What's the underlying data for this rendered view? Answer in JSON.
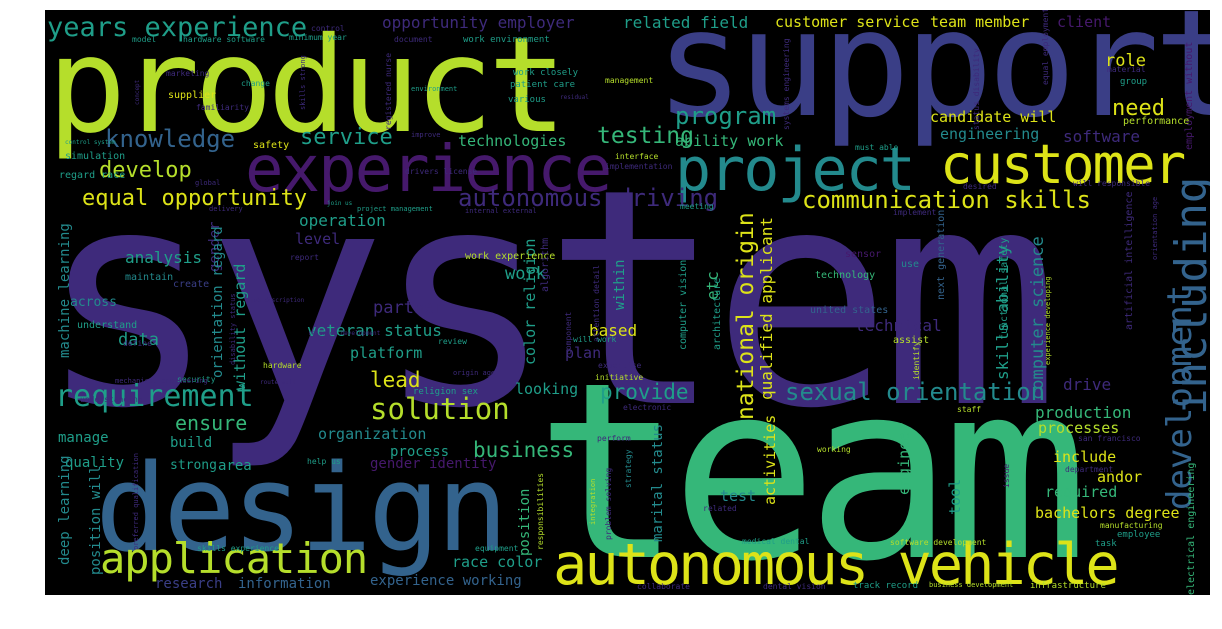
{
  "colors": {
    "purple": "#46196c",
    "violet": "#3e2a7b",
    "indigo": "#3a3e86",
    "blue": "#33638d",
    "teal": "#238a8d",
    "aqua": "#1f9e89",
    "green": "#35b779",
    "lime": "#b5de2b",
    "yellow": "#dde318",
    "background": "#000000"
  },
  "words": [
    {
      "text": "system",
      "color": "violet"
    },
    {
      "text": "team",
      "color": "green"
    },
    {
      "text": "support",
      "color": "indigo"
    },
    {
      "text": "product",
      "color": "lime"
    },
    {
      "text": "design",
      "color": "blue"
    },
    {
      "text": "experience",
      "color": "purple"
    },
    {
      "text": "customer",
      "color": "yellow"
    },
    {
      "text": "project",
      "color": "teal"
    },
    {
      "text": "autonomous vehicle",
      "color": "yellow"
    },
    {
      "text": "application",
      "color": "lime"
    },
    {
      "text": "including",
      "color": "blue"
    },
    {
      "text": "development",
      "color": "blue"
    },
    {
      "text": "years experience",
      "color": "aqua"
    },
    {
      "text": "requirement",
      "color": "aqua"
    },
    {
      "text": "solution",
      "color": "lime"
    },
    {
      "text": "sexual orientation",
      "color": "teal"
    },
    {
      "text": "communication skills",
      "color": "yellow"
    },
    {
      "text": "national origin",
      "color": "yellow"
    },
    {
      "text": "autonomous driving",
      "color": "violet"
    },
    {
      "text": "equal opportunity",
      "color": "yellow"
    },
    {
      "text": "knowledge",
      "color": "blue"
    },
    {
      "text": "develop",
      "color": "lime"
    },
    {
      "text": "program",
      "color": "aqua"
    },
    {
      "text": "testing",
      "color": "green"
    },
    {
      "text": "need",
      "color": "yellow"
    },
    {
      "text": "service",
      "color": "aqua"
    },
    {
      "text": "lead",
      "color": "yellow"
    },
    {
      "text": "business",
      "color": "green"
    },
    {
      "text": "ensure",
      "color": "green"
    },
    {
      "text": "provide",
      "color": "aqua"
    },
    {
      "text": "opportunity employer",
      "color": "violet"
    },
    {
      "text": "related field",
      "color": "aqua"
    },
    {
      "text": "customer service",
      "color": "yellow"
    },
    {
      "text": "team member",
      "color": "yellow"
    },
    {
      "text": "client",
      "color": "purple"
    },
    {
      "text": "role",
      "color": "yellow"
    },
    {
      "text": "candidate will",
      "color": "yellow"
    },
    {
      "text": "software",
      "color": "violet"
    },
    {
      "text": "engineering",
      "color": "teal"
    },
    {
      "text": "technologies",
      "color": "green"
    },
    {
      "text": "ability work",
      "color": "green"
    },
    {
      "text": "operation",
      "color": "aqua"
    },
    {
      "text": "analysis",
      "color": "aqua"
    },
    {
      "text": "work",
      "color": "aqua"
    },
    {
      "text": "data",
      "color": "aqua"
    },
    {
      "text": "veteran status",
      "color": "aqua"
    },
    {
      "text": "platform",
      "color": "aqua"
    },
    {
      "text": "partner",
      "color": "violet"
    },
    {
      "text": "based",
      "color": "yellow"
    },
    {
      "text": "plan",
      "color": "violet"
    },
    {
      "text": "technical",
      "color": "violet"
    },
    {
      "text": "color religion",
      "color": "aqua"
    },
    {
      "text": "within",
      "color": "aqua"
    },
    {
      "text": "etc",
      "color": "green"
    },
    {
      "text": "qualified applicant",
      "color": "yellow"
    },
    {
      "text": "skills ability",
      "color": "aqua"
    },
    {
      "text": "computer science",
      "color": "teal"
    },
    {
      "text": "drive",
      "color": "violet"
    },
    {
      "text": "production",
      "color": "green"
    },
    {
      "text": "processes",
      "color": "lime"
    },
    {
      "text": "include",
      "color": "yellow"
    },
    {
      "text": "andor",
      "color": "yellow"
    },
    {
      "text": "required",
      "color": "green"
    },
    {
      "text": "bachelors degree",
      "color": "yellow"
    },
    {
      "text": "tool",
      "color": "aqua"
    },
    {
      "text": "engineer",
      "color": "green"
    },
    {
      "text": "test",
      "color": "teal"
    },
    {
      "text": "activities",
      "color": "yellow"
    },
    {
      "text": "marital status",
      "color": "teal"
    },
    {
      "text": "position",
      "color": "green"
    },
    {
      "text": "race color",
      "color": "aqua"
    },
    {
      "text": "experience working",
      "color": "blue"
    },
    {
      "text": "research",
      "color": "indigo"
    },
    {
      "text": "information",
      "color": "blue"
    },
    {
      "text": "manage",
      "color": "aqua"
    },
    {
      "text": "build",
      "color": "aqua"
    },
    {
      "text": "quality",
      "color": "aqua"
    },
    {
      "text": "area",
      "color": "aqua"
    },
    {
      "text": "strong",
      "color": "aqua"
    },
    {
      "text": "organization",
      "color": "teal"
    },
    {
      "text": "process",
      "color": "aqua"
    },
    {
      "text": "gender identity",
      "color": "purple"
    },
    {
      "text": "looking",
      "color": "aqua"
    },
    {
      "text": "deep learning",
      "color": "teal"
    },
    {
      "text": "position will",
      "color": "teal"
    },
    {
      "text": "machine learning",
      "color": "teal"
    },
    {
      "text": "gender",
      "color": "violet"
    },
    {
      "text": "orientation regard",
      "color": "teal"
    },
    {
      "text": "without regard",
      "color": "aqua"
    },
    {
      "text": "level",
      "color": "violet"
    },
    {
      "text": "across",
      "color": "teal"
    },
    {
      "text": "understand",
      "color": "aqua"
    },
    {
      "text": "maintain",
      "color": "teal"
    },
    {
      "text": "create",
      "color": "indigo"
    },
    {
      "text": "work experience",
      "color": "lime"
    },
    {
      "text": "algorithm",
      "color": "violet"
    },
    {
      "text": "computer vision",
      "color": "aqua"
    },
    {
      "text": "architecture",
      "color": "aqua"
    },
    {
      "text": "technology",
      "color": "green"
    },
    {
      "text": "united states",
      "color": "blue"
    },
    {
      "text": "assist",
      "color": "lime"
    },
    {
      "text": "sensor",
      "color": "purple"
    },
    {
      "text": "use",
      "color": "teal"
    },
    {
      "text": "next generation",
      "color": "blue"
    },
    {
      "text": "functional safety",
      "color": "aqua"
    },
    {
      "text": "artificial intelligence",
      "color": "violet"
    },
    {
      "text": "electrical engineering",
      "color": "green"
    },
    {
      "text": "employment without",
      "color": "purple"
    },
    {
      "text": "performance",
      "color": "lime"
    },
    {
      "text": "simulation",
      "color": "aqua"
    },
    {
      "text": "safety",
      "color": "yellow"
    },
    {
      "text": "regard race",
      "color": "aqua"
    },
    {
      "text": "supplier",
      "color": "yellow"
    },
    {
      "text": "marketing",
      "color": "violet"
    },
    {
      "text": "familiarity",
      "color": "violet"
    },
    {
      "text": "control",
      "color": "violet"
    },
    {
      "text": "model",
      "color": "aqua"
    },
    {
      "text": "hardware software",
      "color": "aqua"
    },
    {
      "text": "minimum year",
      "color": "aqua"
    },
    {
      "text": "document",
      "color": "violet"
    },
    {
      "text": "work environment",
      "color": "aqua"
    },
    {
      "text": "work closely",
      "color": "aqua"
    },
    {
      "text": "patient care",
      "color": "aqua"
    },
    {
      "text": "various",
      "color": "aqua"
    },
    {
      "text": "management",
      "color": "lime"
    },
    {
      "text": "interface",
      "color": "lime"
    },
    {
      "text": "implementation",
      "color": "violet"
    },
    {
      "text": "must able",
      "color": "aqua"
    },
    {
      "text": "will responsible",
      "color": "violet"
    },
    {
      "text": "desired",
      "color": "violet"
    },
    {
      "text": "implement",
      "color": "violet"
    },
    {
      "text": "meeting",
      "color": "aqua"
    },
    {
      "text": "project management",
      "color": "aqua"
    },
    {
      "text": "report",
      "color": "violet"
    },
    {
      "text": "review",
      "color": "aqua"
    },
    {
      "text": "hardware",
      "color": "lime"
    },
    {
      "text": "security",
      "color": "aqua"
    },
    {
      "text": "define",
      "color": "violet"
    },
    {
      "text": "help us",
      "color": "aqua"
    },
    {
      "text": "religion sex",
      "color": "aqua"
    },
    {
      "text": "expertise",
      "color": "violet"
    },
    {
      "text": "initiative",
      "color": "lime"
    },
    {
      "text": "electronic",
      "color": "violet"
    },
    {
      "text": "perform",
      "color": "violet"
    },
    {
      "text": "strategy",
      "color": "teal"
    },
    {
      "text": "working",
      "color": "lime"
    },
    {
      "text": "staff",
      "color": "lime"
    },
    {
      "text": "san francisco",
      "color": "violet"
    },
    {
      "text": "department",
      "color": "violet"
    },
    {
      "text": "issue",
      "color": "purple"
    },
    {
      "text": "manufacturing",
      "color": "lime"
    },
    {
      "text": "employee",
      "color": "aqua"
    },
    {
      "text": "task",
      "color": "aqua"
    },
    {
      "text": "medical dental",
      "color": "aqua"
    },
    {
      "text": "software development",
      "color": "lime"
    },
    {
      "text": "dental vision",
      "color": "violet"
    },
    {
      "text": "collaborate",
      "color": "violet"
    },
    {
      "text": "track record",
      "color": "aqua"
    },
    {
      "text": "business development",
      "color": "lime"
    },
    {
      "text": "infrastructure",
      "color": "lime"
    },
    {
      "text": "skills experience",
      "color": "aqua"
    },
    {
      "text": "equipment",
      "color": "aqua"
    },
    {
      "text": "integration",
      "color": "lime"
    },
    {
      "text": "related",
      "color": "violet"
    },
    {
      "text": "responsibilities",
      "color": "lime"
    },
    {
      "text": "problem solving",
      "color": "violet"
    },
    {
      "text": "preferred qualification",
      "color": "violet"
    },
    {
      "text": "registered nurse",
      "color": "violet"
    },
    {
      "text": "drivers license",
      "color": "violet"
    },
    {
      "text": "skills strong",
      "color": "violet"
    },
    {
      "text": "change",
      "color": "aqua"
    },
    {
      "text": "improve",
      "color": "violet"
    },
    {
      "text": "mechanical engineering",
      "color": "violet"
    },
    {
      "text": "understanding",
      "color": "violet"
    },
    {
      "text": "disability status",
      "color": "violet"
    },
    {
      "text": "material",
      "color": "violet"
    },
    {
      "text": "group",
      "color": "aqua"
    },
    {
      "text": "equal employment",
      "color": "violet"
    },
    {
      "text": "status disability",
      "color": "violet"
    },
    {
      "text": "systems engineering",
      "color": "violet"
    },
    {
      "text": "identify",
      "color": "lime"
    },
    {
      "text": "orientation age",
      "color": "violet"
    },
    {
      "text": "experience developing",
      "color": "lime"
    },
    {
      "text": "environment",
      "color": "aqua"
    },
    {
      "text": "attention detail",
      "color": "violet"
    },
    {
      "text": "component",
      "color": "violet"
    },
    {
      "text": "will work",
      "color": "aqua"
    },
    {
      "text": "internal external",
      "color": "violet"
    },
    {
      "text": "delivery",
      "color": "violet"
    },
    {
      "text": "global",
      "color": "violet"
    },
    {
      "text": "concept",
      "color": "violet"
    },
    {
      "text": "join us",
      "color": "aqua"
    },
    {
      "text": "control system",
      "color": "aqua"
    },
    {
      "text": "job description",
      "color": "violet"
    },
    {
      "text": "origin age",
      "color": "violet"
    },
    {
      "text": "research development",
      "color": "violet"
    },
    {
      "text": "route will",
      "color": "violet"
    },
    {
      "text": "residual",
      "color": "violet"
    }
  ]
}
